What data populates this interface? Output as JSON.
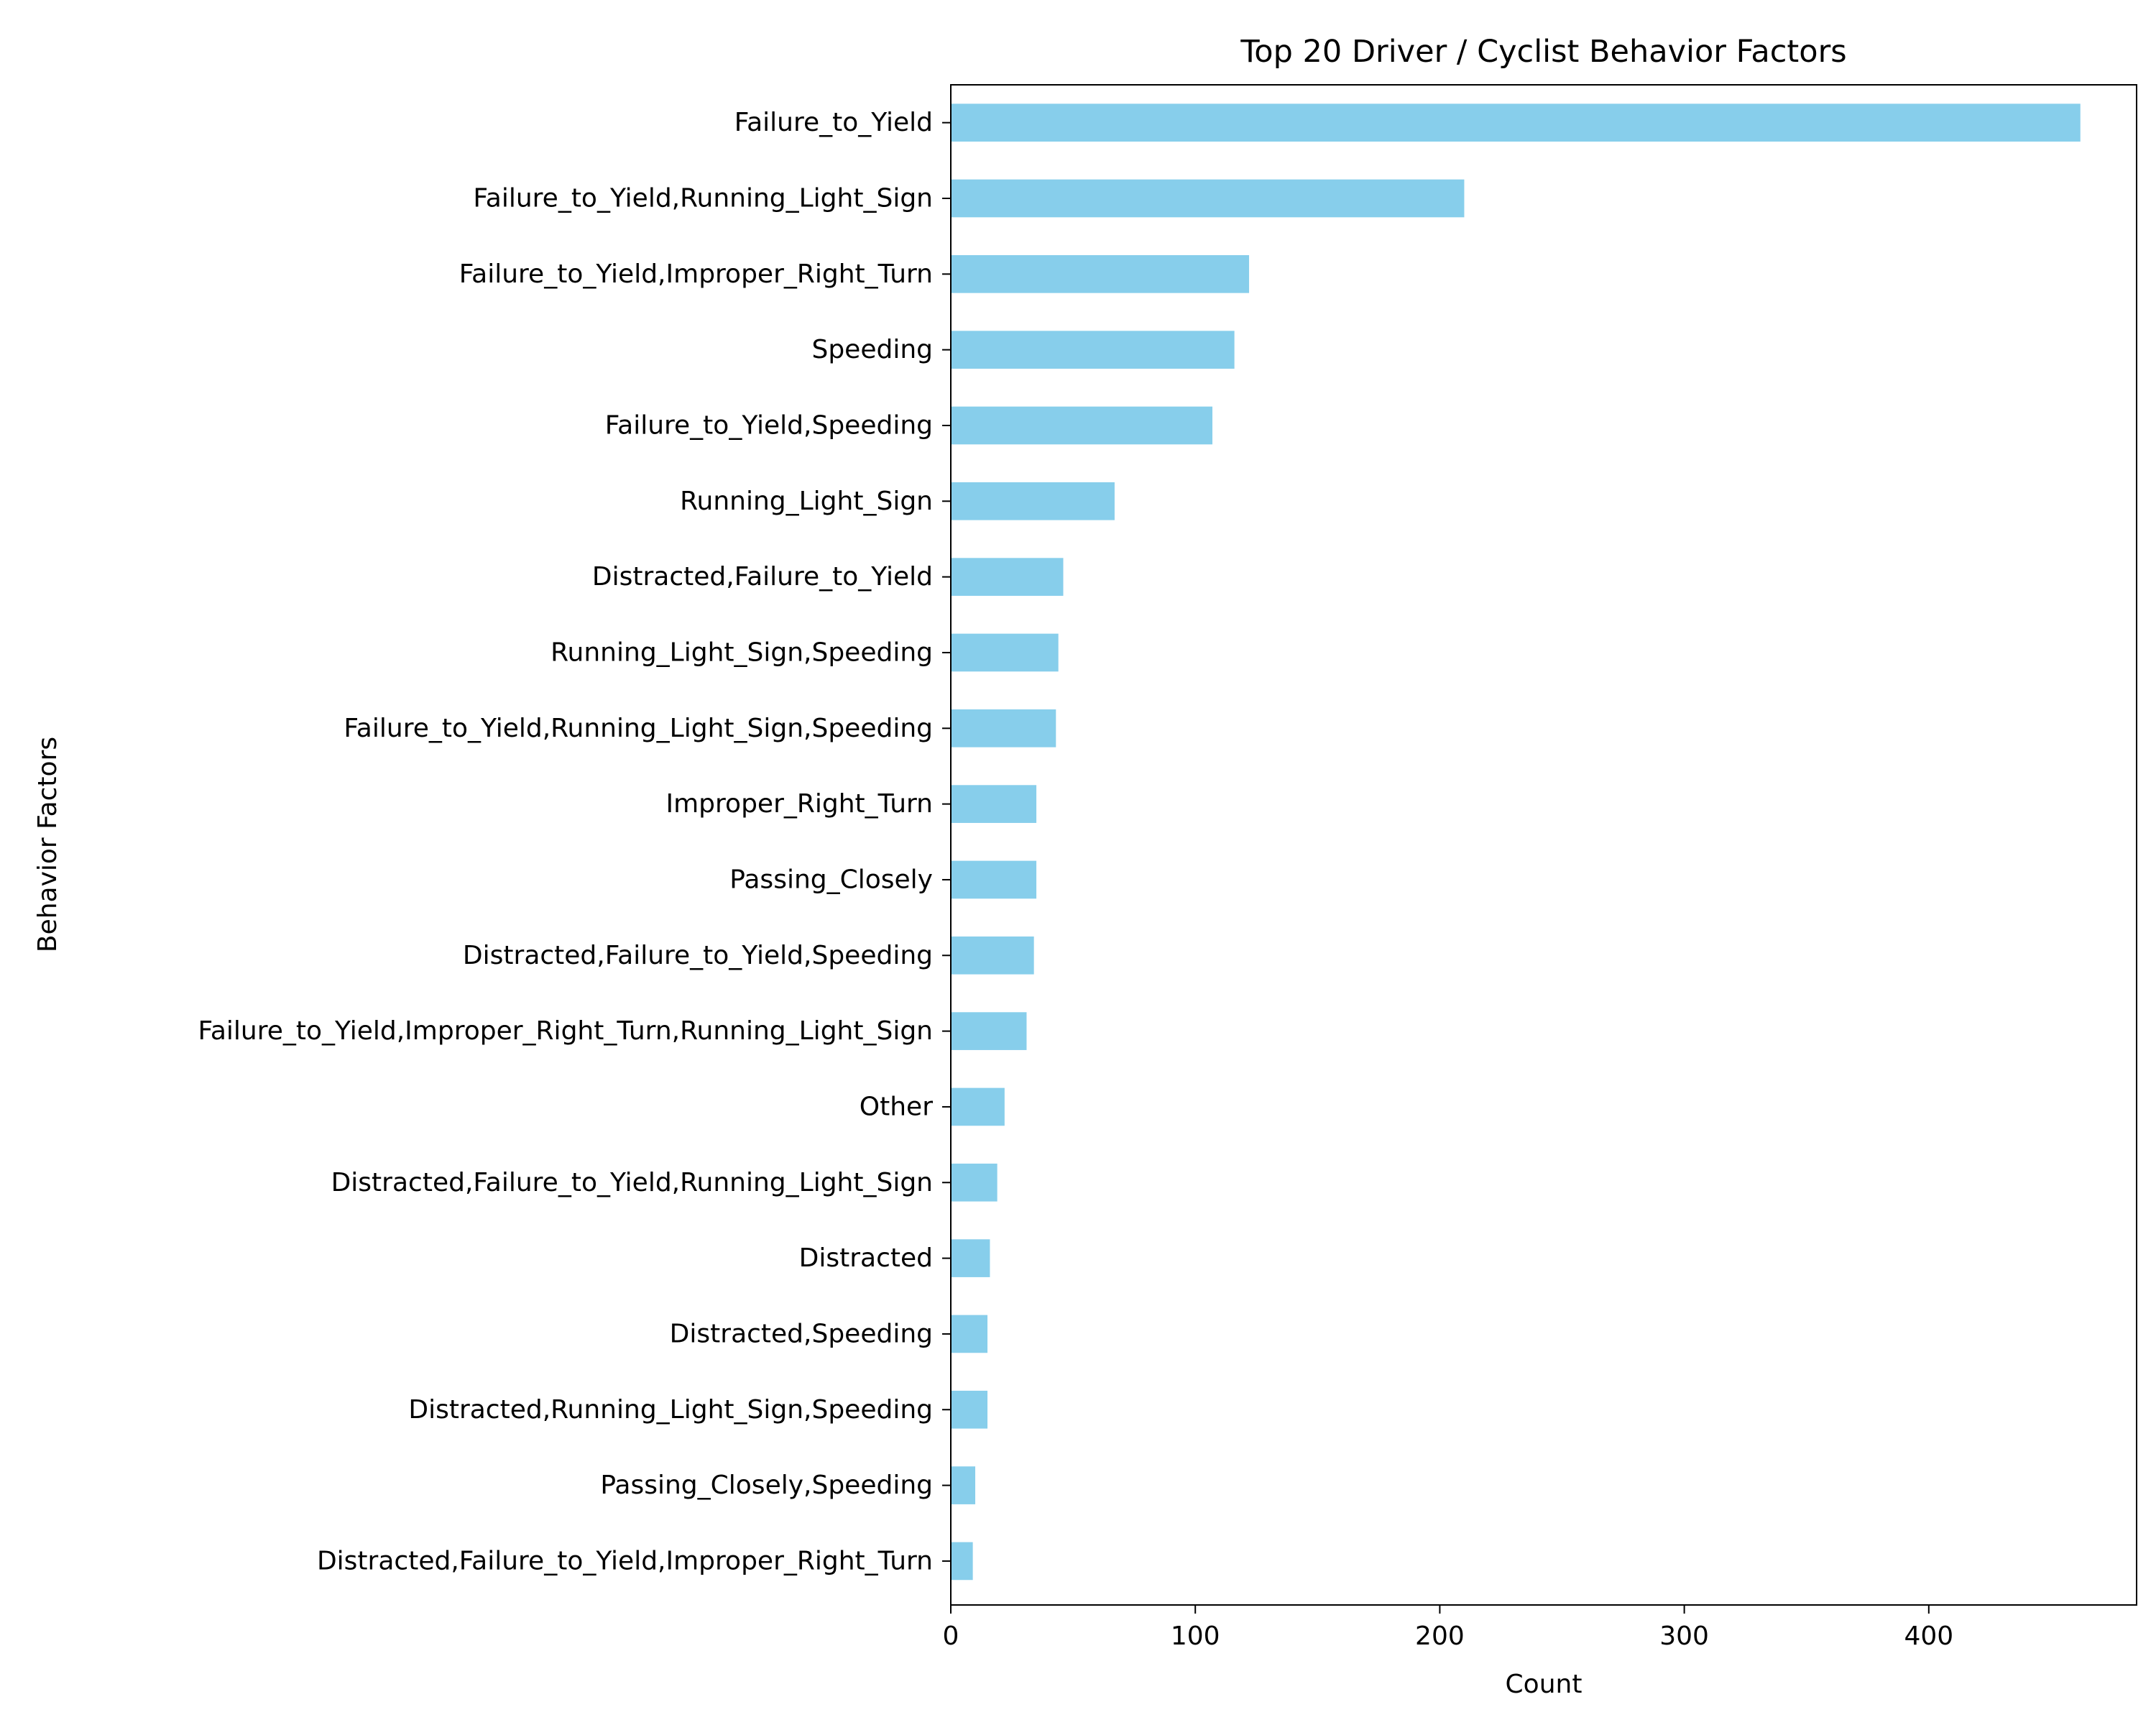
{
  "colors": {
    "bar": "#87ceeb",
    "axis": "#000000",
    "background": "#ffffff"
  },
  "chart_data": {
    "type": "bar",
    "orientation": "horizontal",
    "title": "Top 20 Driver / Cyclist Behavior Factors",
    "xlabel": "Count",
    "ylabel": "Behavior Factors",
    "xlim": [
      0,
      485
    ],
    "xticks": [
      0,
      100,
      200,
      300,
      400
    ],
    "grid": false,
    "categories": [
      "Failure_to_Yield",
      "Failure_to_Yield,Running_Light_Sign",
      "Failure_to_Yield,Improper_Right_Turn",
      "Speeding",
      "Failure_to_Yield,Speeding",
      "Running_Light_Sign",
      "Distracted,Failure_to_Yield",
      "Running_Light_Sign,Speeding",
      "Failure_to_Yield,Running_Light_Sign,Speeding",
      "Improper_Right_Turn",
      "Passing_Closely",
      "Distracted,Failure_to_Yield,Speeding",
      "Failure_to_Yield,Improper_Right_Turn,Running_Light_Sign",
      "Other",
      "Distracted,Failure_to_Yield,Running_Light_Sign",
      "Distracted",
      "Distracted,Speeding",
      "Distracted,Running_Light_Sign,Speeding",
      "Passing_Closely,Speeding",
      "Distracted,Failure_to_Yield,Improper_Right_Turn"
    ],
    "values": [
      462,
      210,
      122,
      116,
      107,
      67,
      46,
      44,
      43,
      35,
      35,
      34,
      31,
      22,
      19,
      16,
      15,
      15,
      10,
      9
    ]
  }
}
